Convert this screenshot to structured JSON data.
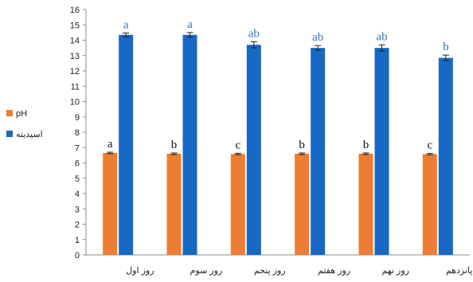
{
  "chart_data": {
    "type": "bar",
    "categories": [
      "روز اول",
      "روز سوم",
      "روز پنجم",
      "روز هفتم",
      "روز نهم",
      "روز پانزدهم"
    ],
    "series": [
      {
        "name": "pH",
        "color": "#ED7D31",
        "values": [
          6.65,
          6.6,
          6.58,
          6.6,
          6.6,
          6.57
        ],
        "errors": [
          0.05,
          0.05,
          0.05,
          0.05,
          0.05,
          0.05
        ],
        "letters": [
          "a",
          "b",
          "c",
          "b",
          "b",
          "c"
        ],
        "letter_color": "#111111"
      },
      {
        "name": "اسیدیته",
        "color": "#1769C4",
        "values": [
          14.35,
          14.35,
          13.7,
          13.5,
          13.5,
          12.85
        ],
        "errors": [
          0.12,
          0.15,
          0.2,
          0.15,
          0.2,
          0.18
        ],
        "letters": [
          "a",
          "a",
          "ab",
          "ab",
          "ab",
          "b"
        ],
        "letter_color": "#2E75C8"
      }
    ],
    "ylim": [
      0,
      16
    ],
    "yticks": [
      "0",
      "1",
      "2",
      "3",
      "4",
      "5",
      "6",
      "7",
      "8",
      "9",
      "10",
      "11",
      "12",
      "13",
      "14",
      "15",
      "16"
    ],
    "grid": false,
    "legend_position": "left"
  }
}
